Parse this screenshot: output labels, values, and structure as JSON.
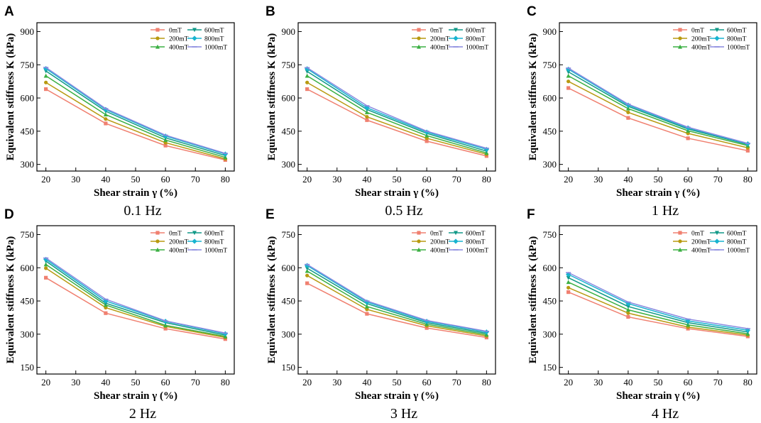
{
  "chart_data": [
    {
      "type": "line",
      "panel": "A",
      "caption": "0.1 Hz",
      "xlabel": "Shear strain γ (%)",
      "ylabel": "Equivalent stiffness K (kPa)",
      "x": [
        20,
        40,
        60,
        80
      ],
      "xticks": [
        20,
        30,
        40,
        50,
        60,
        70,
        80
      ],
      "xlim": [
        17,
        83
      ],
      "yticks": [
        300,
        450,
        600,
        750,
        900
      ],
      "ylim": [
        270,
        940
      ],
      "series": [
        {
          "name": "0mT",
          "values": [
            640,
            485,
            385,
            320
          ]
        },
        {
          "name": "200mT",
          "values": [
            670,
            505,
            398,
            325
          ]
        },
        {
          "name": "400mT",
          "values": [
            700,
            525,
            410,
            332
          ]
        },
        {
          "name": "600mT",
          "values": [
            722,
            540,
            420,
            340
          ]
        },
        {
          "name": "800mT",
          "values": [
            733,
            548,
            428,
            347
          ]
        },
        {
          "name": "1000mT",
          "values": [
            738,
            552,
            432,
            350
          ]
        }
      ]
    },
    {
      "type": "line",
      "panel": "B",
      "caption": "0.5 Hz",
      "xlabel": "Shear strain γ (%)",
      "ylabel": "Equivalent stiffness K (kPa)",
      "x": [
        20,
        40,
        60,
        80
      ],
      "xticks": [
        20,
        30,
        40,
        50,
        60,
        70,
        80
      ],
      "xlim": [
        17,
        83
      ],
      "yticks": [
        300,
        450,
        600,
        750,
        900
      ],
      "ylim": [
        270,
        940
      ],
      "series": [
        {
          "name": "0mT",
          "values": [
            640,
            500,
            405,
            338
          ]
        },
        {
          "name": "200mT",
          "values": [
            670,
            515,
            418,
            346
          ]
        },
        {
          "name": "400mT",
          "values": [
            700,
            535,
            430,
            352
          ]
        },
        {
          "name": "600mT",
          "values": [
            720,
            548,
            440,
            360
          ]
        },
        {
          "name": "800mT",
          "values": [
            732,
            556,
            446,
            368
          ]
        },
        {
          "name": "1000mT",
          "values": [
            737,
            565,
            450,
            373
          ]
        }
      ]
    },
    {
      "type": "line",
      "panel": "C",
      "caption": "1 Hz",
      "xlabel": "Shear strain γ (%)",
      "ylabel": "Equivalent stiffness K (kPa)",
      "x": [
        20,
        40,
        60,
        80
      ],
      "xticks": [
        20,
        30,
        40,
        50,
        60,
        70,
        80
      ],
      "xlim": [
        17,
        83
      ],
      "yticks": [
        300,
        450,
        600,
        750,
        900
      ],
      "ylim": [
        270,
        940
      ],
      "series": [
        {
          "name": "0mT",
          "values": [
            645,
            510,
            418,
            362
          ]
        },
        {
          "name": "200mT",
          "values": [
            675,
            535,
            440,
            375
          ]
        },
        {
          "name": "400mT",
          "values": [
            700,
            552,
            452,
            385
          ]
        },
        {
          "name": "600mT",
          "values": [
            718,
            562,
            460,
            390
          ]
        },
        {
          "name": "800mT",
          "values": [
            730,
            568,
            465,
            393
          ]
        },
        {
          "name": "1000mT",
          "values": [
            735,
            572,
            468,
            395
          ]
        }
      ]
    },
    {
      "type": "line",
      "panel": "D",
      "caption": "2 Hz",
      "xlabel": "Shear strain γ (%)",
      "ylabel": "Equivalent stiffness K (kPa)",
      "x": [
        20,
        40,
        60,
        80
      ],
      "xticks": [
        20,
        30,
        40,
        50,
        60,
        70,
        80
      ],
      "xlim": [
        17,
        83
      ],
      "yticks": [
        150,
        300,
        450,
        600,
        750
      ],
      "ylim": [
        120,
        790
      ],
      "series": [
        {
          "name": "0mT",
          "values": [
            555,
            395,
            325,
            278
          ]
        },
        {
          "name": "200mT",
          "values": [
            598,
            420,
            335,
            285
          ]
        },
        {
          "name": "400mT",
          "values": [
            615,
            432,
            340,
            290
          ]
        },
        {
          "name": "600mT",
          "values": [
            630,
            440,
            352,
            296
          ]
        },
        {
          "name": "800mT",
          "values": [
            638,
            450,
            358,
            302
          ]
        },
        {
          "name": "1000mT",
          "values": [
            644,
            458,
            360,
            305
          ]
        }
      ]
    },
    {
      "type": "line",
      "panel": "E",
      "caption": "3 Hz",
      "xlabel": "Shear strain γ (%)",
      "ylabel": "Equivalent stiffness K (kPa)",
      "x": [
        20,
        40,
        60,
        80
      ],
      "xticks": [
        20,
        30,
        40,
        50,
        60,
        70,
        80
      ],
      "xlim": [
        17,
        83
      ],
      "yticks": [
        150,
        300,
        450,
        600,
        750
      ],
      "ylim": [
        120,
        790
      ],
      "series": [
        {
          "name": "0mT",
          "values": [
            530,
            392,
            328,
            285
          ]
        },
        {
          "name": "200mT",
          "values": [
            565,
            412,
            338,
            292
          ]
        },
        {
          "name": "400mT",
          "values": [
            585,
            425,
            345,
            298
          ]
        },
        {
          "name": "600mT",
          "values": [
            598,
            438,
            352,
            304
          ]
        },
        {
          "name": "800mT",
          "values": [
            610,
            445,
            358,
            310
          ]
        },
        {
          "name": "1000mT",
          "values": [
            615,
            450,
            362,
            313
          ]
        }
      ]
    },
    {
      "type": "line",
      "panel": "F",
      "caption": "4 Hz",
      "xlabel": "Shear strain γ (%)",
      "ylabel": "Equivalent stiffness K (kPa)",
      "x": [
        20,
        40,
        60,
        80
      ],
      "xticks": [
        20,
        30,
        40,
        50,
        60,
        70,
        80
      ],
      "xlim": [
        17,
        83
      ],
      "yticks": [
        150,
        300,
        450,
        600,
        750
      ],
      "ylim": [
        120,
        790
      ],
      "series": [
        {
          "name": "0mT",
          "values": [
            490,
            378,
            325,
            290
          ]
        },
        {
          "name": "200mT",
          "values": [
            510,
            395,
            332,
            296
          ]
        },
        {
          "name": "400mT",
          "values": [
            535,
            410,
            342,
            302
          ]
        },
        {
          "name": "600mT",
          "values": [
            555,
            425,
            352,
            310
          ]
        },
        {
          "name": "800mT",
          "values": [
            570,
            438,
            360,
            318
          ]
        },
        {
          "name": "1000mT",
          "values": [
            578,
            445,
            368,
            325
          ]
        }
      ]
    }
  ],
  "series_colors": [
    "#f08070",
    "#b89a10",
    "#3cb043",
    "#119988",
    "#18b4d0",
    "#8a8adf"
  ]
}
